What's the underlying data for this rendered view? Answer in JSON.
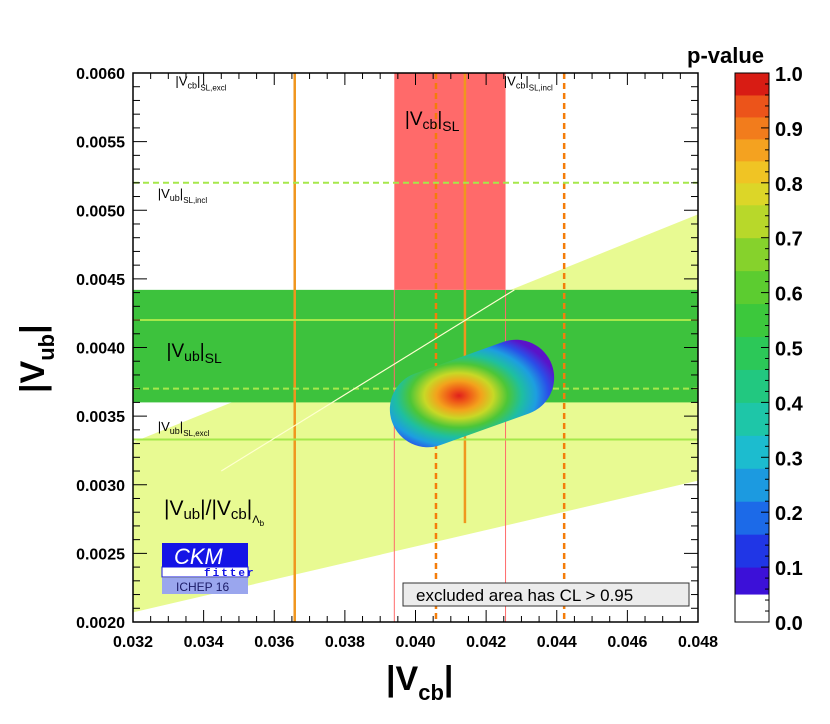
{
  "chart_data": {
    "type": "heatmap",
    "title": "",
    "xlabel": {
      "main": "|V",
      "sub": "cb",
      "close": "|"
    },
    "ylabel": {
      "main": "|V",
      "sub": "ub",
      "close": "|"
    },
    "xlim": [
      0.032,
      0.048
    ],
    "ylim": [
      0.002,
      0.006
    ],
    "xticks": [
      "0.032",
      "0.034",
      "0.036",
      "0.038",
      "0.040",
      "0.042",
      "0.044",
      "0.046",
      "0.048"
    ],
    "yticks": [
      "0.0020",
      "0.0025",
      "0.0030",
      "0.0035",
      "0.0040",
      "0.0045",
      "0.0050",
      "0.0055",
      "0.0060"
    ],
    "colorbar": {
      "title": "p-value",
      "ticks": [
        "0.0",
        "0.1",
        "0.2",
        "0.3",
        "0.4",
        "0.5",
        "0.6",
        "0.7",
        "0.8",
        "0.9",
        "1.0"
      ],
      "range": [
        0,
        1
      ]
    },
    "bands": [
      {
        "name": "Vcb-SL-band",
        "axis": "x",
        "range": [
          0.0394,
          0.04255
        ],
        "center": 0.0414,
        "color": "#ff6a6a"
      },
      {
        "name": "Vub-SL-band",
        "axis": "y",
        "range": [
          0.0036,
          0.00442
        ],
        "color": "#3dc23d"
      }
    ],
    "lines": [
      {
        "name": "Vcb-SL-excl-line",
        "axis": "x",
        "value": 0.03658,
        "style": "solid",
        "color": "#f0961e"
      },
      {
        "name": "Vcb-SL-incl-line-1",
        "axis": "x",
        "value": 0.04058,
        "style": "dashed",
        "color": "#f47d0a"
      },
      {
        "name": "Vcb-SL-incl-line-2",
        "axis": "x",
        "value": 0.04421,
        "style": "dashed",
        "color": "#f47d0a"
      },
      {
        "name": "Vub-SL-incl-line-1",
        "axis": "y",
        "value": 0.0052,
        "style": "dashed",
        "color": "#a5e84a"
      },
      {
        "name": "Vub-SL-incl-line-2",
        "axis": "y",
        "value": 0.0037,
        "style": "dashed",
        "color": "#a5e84a"
      },
      {
        "name": "Vub-SL-excl-line-1",
        "axis": "y",
        "value": 0.0042,
        "style": "solid",
        "color": "#a5e84a"
      },
      {
        "name": "Vub-SL-excl-line-2",
        "axis": "y",
        "value": 0.00333,
        "style": "solid",
        "color": "#a5e84a"
      }
    ],
    "ratio_band": {
      "name": "Vub-Vcb-Lambda-b-wedge",
      "lower": [
        [
          0.032,
          0.00207
        ],
        [
          0.048,
          0.00303
        ]
      ],
      "upper": [
        [
          0.032,
          0.00331
        ],
        [
          0.048,
          0.00497
        ]
      ],
      "center": [
        [
          0.0345,
          0.0031
        ],
        [
          0.0428,
          0.00442
        ]
      ],
      "color": "#e8fa92"
    },
    "fit_region": {
      "best_fit": [
        0.04153,
        0.0036
      ],
      "axis_end_a": [
        0.04035,
        0.00355
      ],
      "axis_end_b": [
        0.04285,
        0.00378
      ],
      "p_value_cut": 0.05
    },
    "labels": [
      {
        "name": "label-Vcb-SL-excl",
        "base": "|V",
        "sub": "cb",
        "tail": "|",
        "sub2": "SL,excl",
        "at": [
          0.0332,
          0.00591
        ],
        "size": "small"
      },
      {
        "name": "label-Vcb-SL-incl",
        "base": "|V",
        "sub": "cb",
        "tail": "|",
        "sub2": "SL,incl",
        "at": [
          0.0425,
          0.00591
        ],
        "size": "small"
      },
      {
        "name": "label-Vcb-SL",
        "base": "|V",
        "sub": "cb",
        "tail": "|",
        "sub2": "SL",
        "at": [
          0.0397,
          0.00562
        ],
        "size": "large"
      },
      {
        "name": "label-Vub-SL-incl",
        "base": "|V",
        "sub": "ub",
        "tail": "|",
        "sub2": "SL,incl",
        "at": [
          0.0327,
          0.00509
        ],
        "size": "small"
      },
      {
        "name": "label-Vub-SL",
        "base": "|V",
        "sub": "ub",
        "tail": "|",
        "sub2": "SL",
        "at": [
          0.03295,
          0.00393
        ],
        "size": "large"
      },
      {
        "name": "label-Vub-SL-excl",
        "base": "|V",
        "sub": "ub",
        "tail": "|",
        "sub2": "SL,excl",
        "at": [
          0.0327,
          0.00339
        ],
        "size": "small"
      }
    ],
    "ratio_label": {
      "a": "|V",
      "asub": "ub",
      "mid": "|/|V",
      "bsub": "cb",
      "close": "|",
      "lambda": "Λ",
      "lsub": "b"
    },
    "logo": {
      "ckm": "CKM",
      "fitter": "fitter",
      "conf": "ICHEP 16"
    },
    "legend_box": {
      "text": "excluded area has CL > 0.95",
      "placement": "bottom-right"
    }
  }
}
